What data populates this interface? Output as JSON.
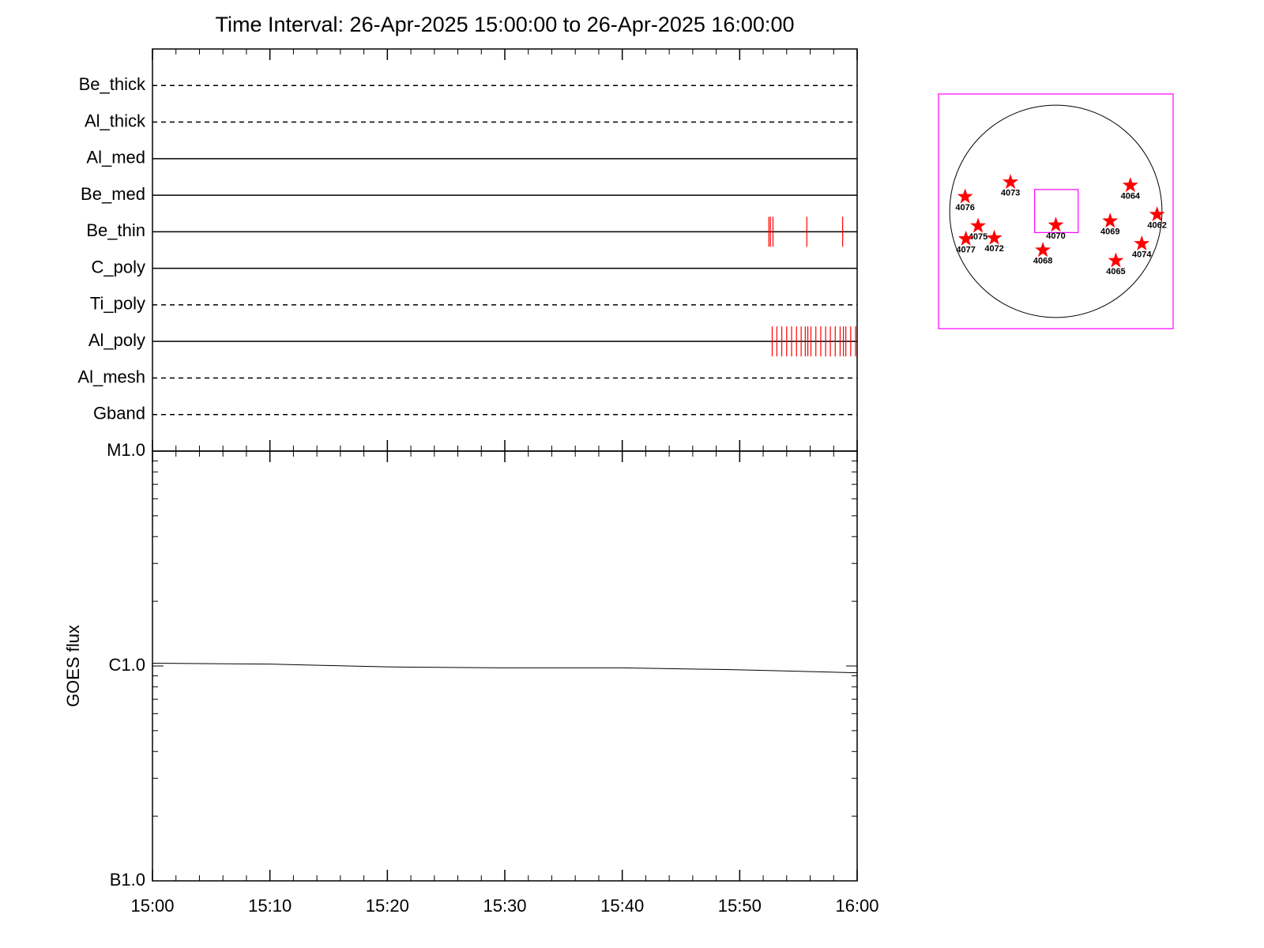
{
  "chart_data": [
    {
      "type": "timeline",
      "title": "Time Interval: 26-Apr-2025 15:00:00 to 26-Apr-2025 16:00:00",
      "categories": [
        "Be_thick",
        "Al_thick",
        "Al_med",
        "Be_med",
        "Be_thin",
        "C_poly",
        "Ti_poly",
        "Al_poly",
        "Al_mesh",
        "Gband"
      ],
      "line_styles": [
        "dashed",
        "dashed",
        "solid",
        "solid",
        "solid",
        "solid",
        "dashed",
        "solid",
        "dashed",
        "dashed"
      ],
      "events": [
        [],
        [],
        [],
        [],
        [
          "15:52:29",
          "15:52:37",
          "15:52:50",
          "15:55:43",
          "15:58:46"
        ],
        [],
        [],
        [
          "15:52:46",
          "15:53:10",
          "15:53:35",
          "15:54:00",
          "15:54:25",
          "15:54:50",
          "15:55:14",
          "15:55:35",
          "15:55:48",
          "15:56:04",
          "15:56:29",
          "15:56:54",
          "15:57:19",
          "15:57:43",
          "15:58:08",
          "15:58:33",
          "15:58:50",
          "15:59:02",
          "15:59:27",
          "15:59:52"
        ],
        [],
        []
      ],
      "event_color": "#ff0000",
      "xlim": [
        "15:00",
        "16:00"
      ],
      "xticks": [
        "15:00",
        "15:10",
        "15:20",
        "15:30",
        "15:40",
        "15:50",
        "16:00"
      ]
    },
    {
      "type": "line",
      "ylabel": "GOES flux",
      "x": [
        "15:00",
        "15:10",
        "15:20",
        "15:30",
        "15:40",
        "15:50",
        "16:00"
      ],
      "values": [
        1.03e-06,
        1.02e-06,
        9.9e-07,
        9.8e-07,
        9.8e-07,
        9.6e-07,
        9.3e-07
      ],
      "color": "#000000",
      "log_y": true,
      "ylim": [
        1e-07,
        1e-05
      ],
      "yticks": [
        {
          "value": 1e-05,
          "label": "M1.0"
        },
        {
          "value": 1e-06,
          "label": "C1.0"
        },
        {
          "value": 1e-07,
          "label": "B1.0"
        }
      ],
      "xlim": [
        "15:00",
        "16:00"
      ],
      "xticks": [
        "15:00",
        "15:10",
        "15:20",
        "15:30",
        "15:40",
        "15:50",
        "16:00"
      ]
    },
    {
      "type": "map",
      "labels": [
        "4076",
        "4073",
        "4064",
        "4062",
        "4070",
        "4069",
        "4075",
        "4077",
        "4072",
        "4068",
        "4074",
        "4065"
      ],
      "x": [
        -812,
        -406,
        667,
        906,
        0,
        486,
        -696,
        -805,
        -551,
        -116,
        769,
        537
      ],
      "y": [
        131,
        261,
        232,
        -29,
        -123,
        -87,
        -131,
        -247,
        -239,
        -348,
        -290,
        -442
      ],
      "disk_radius": 950,
      "xlim": [
        -1050,
        1050
      ],
      "ylim": [
        -1050,
        1050
      ],
      "fov": {
        "xlim": [
          -190,
          200
        ],
        "ylim": [
          -190,
          195
        ]
      },
      "color": "#ff0000",
      "frame_color": "#ff00ff"
    }
  ]
}
